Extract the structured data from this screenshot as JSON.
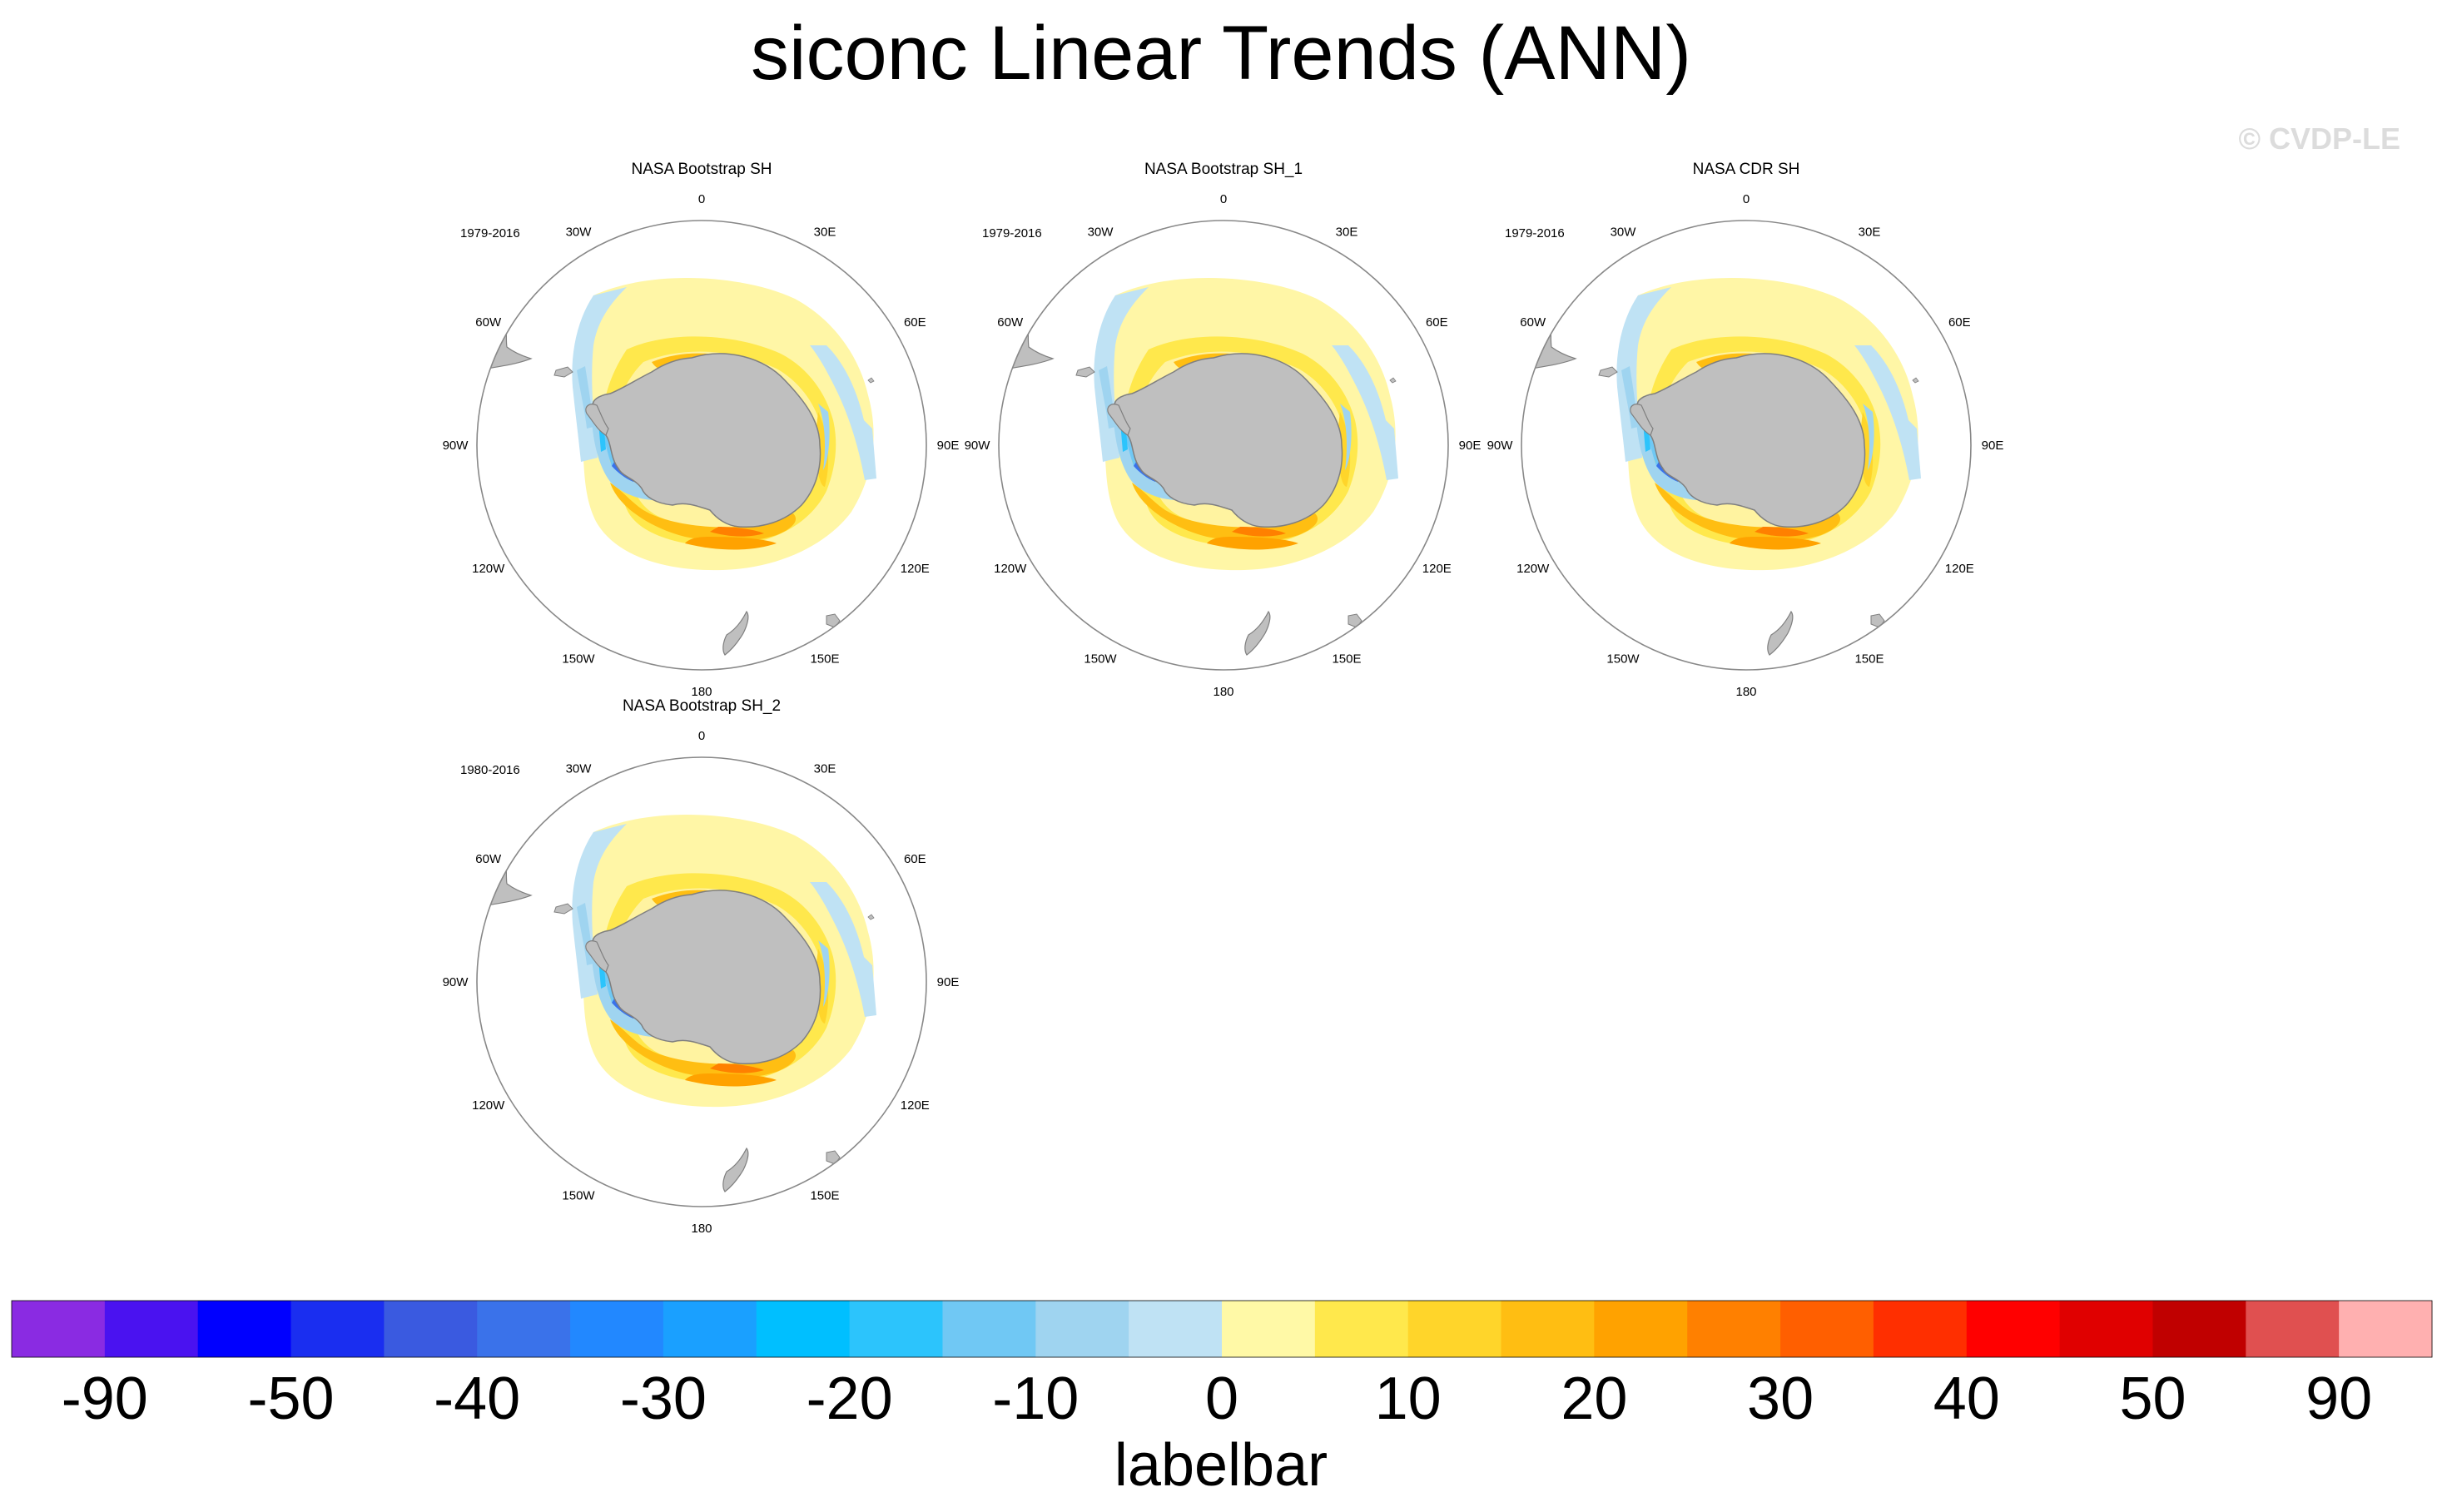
{
  "title": "siconc Linear Trends (ANN)",
  "watermark": "© CVDP-LE",
  "chart_data": {
    "type": "heatmap",
    "title": "siconc Linear Trends (ANN)",
    "projection": "south-polar-stereographic",
    "longitude_labels": [
      "0",
      "30E",
      "60E",
      "90E",
      "120E",
      "150E",
      "180",
      "150W",
      "120W",
      "90W",
      "60W",
      "30W"
    ],
    "panels": [
      {
        "name": "NASA Bootstrap SH",
        "period": "1979-2016"
      },
      {
        "name": "NASA Bootstrap SH_1",
        "period": "1979-2016"
      },
      {
        "name": "NASA CDR SH",
        "period": "1979-2016"
      },
      {
        "name": "NASA Bootstrap SH_2",
        "period": "1980-2016"
      }
    ],
    "colorbar": {
      "title": "labelbar",
      "tick_labels": [
        "-90",
        "-50",
        "-40",
        "-30",
        "-20",
        "-10",
        "0",
        "10",
        "20",
        "30",
        "40",
        "50",
        "90"
      ],
      "colors": [
        "#8a2be2",
        "#4a12f0",
        "#0000ff",
        "#1a2ef0",
        "#3a5ae0",
        "#3a72ea",
        "#2288ff",
        "#1aa0ff",
        "#00bfff",
        "#2cc4fc",
        "#70c8f4",
        "#9fd4f0",
        "#bfe2f4",
        "#fff9a6",
        "#ffe84c",
        "#ffd52a",
        "#ffbe12",
        "#ffa200",
        "#ff8000",
        "#ff5f00",
        "#ff2f00",
        "#ff0000",
        "#e00000",
        "#c00000",
        "#e05050",
        "#ffb0b0"
      ]
    }
  }
}
